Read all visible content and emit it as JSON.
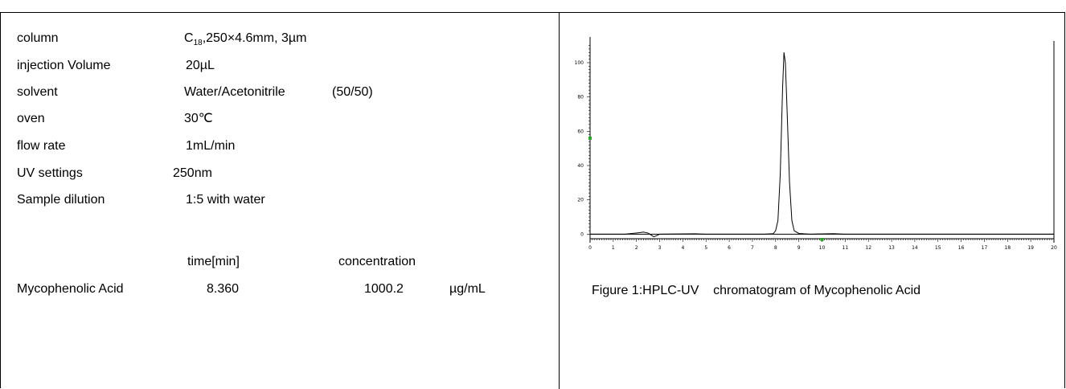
{
  "params": [
    {
      "label": "column",
      "value": "C",
      "value_sub": "18",
      "value_rest": ",250×4.6mm, 3µm"
    },
    {
      "label": "injection Volume",
      "value": "20µL"
    },
    {
      "label": "solvent",
      "value": "Water/Acetonitrile",
      "value_extra": "(50/50)"
    },
    {
      "label": "oven",
      "value": "30℃"
    },
    {
      "label": "flow rate",
      "value": "1mL/min"
    },
    {
      "label": "UV settings",
      "value": "250nm"
    },
    {
      "label": "Sample dilution",
      "value": "1:5 with water"
    }
  ],
  "results": {
    "headers": {
      "time": "time[min]",
      "concentration": "concentration"
    },
    "rows": [
      {
        "compound": "Mycophenolic Acid",
        "time": "8.360",
        "concentration": "1000.2",
        "unit": "µg/mL"
      }
    ]
  },
  "caption": "Figure 1:HPLC-UV    chromatogram of Mycophenolic Acid",
  "chart_data": {
    "type": "line",
    "title": "",
    "xlabel": "",
    "ylabel": "",
    "xlim": [
      0,
      20
    ],
    "ylim": [
      -5,
      115
    ],
    "xticks": [
      "0",
      "1",
      "2",
      "3",
      "4",
      "5",
      "6",
      "7",
      "8",
      "9",
      "10",
      "11",
      "12",
      "13",
      "14",
      "15",
      "16",
      "17",
      "18",
      "19",
      "20"
    ],
    "yticks": [
      "0",
      "20",
      "40",
      "60",
      "80",
      "100"
    ],
    "grid": false,
    "color": "#000000",
    "marker_color": "#22aa22",
    "series": [
      {
        "x": [
          0,
          1.5,
          2.1,
          2.3,
          2.5,
          2.75,
          2.85,
          3.0,
          4.5,
          5.0,
          7.5,
          7.9,
          8.0,
          8.1,
          8.2,
          8.3,
          8.36,
          8.42,
          8.5,
          8.6,
          8.7,
          8.8,
          9.0,
          9.5,
          10.5,
          11.0,
          20.0
        ],
        "y": [
          0,
          0,
          0.8,
          1.2,
          0.6,
          -1.5,
          -1.0,
          0,
          0.2,
          0,
          0,
          0.3,
          2,
          8,
          35,
          85,
          106,
          100,
          70,
          30,
          8,
          2,
          0.4,
          0,
          0.3,
          0,
          0
        ]
      }
    ]
  }
}
